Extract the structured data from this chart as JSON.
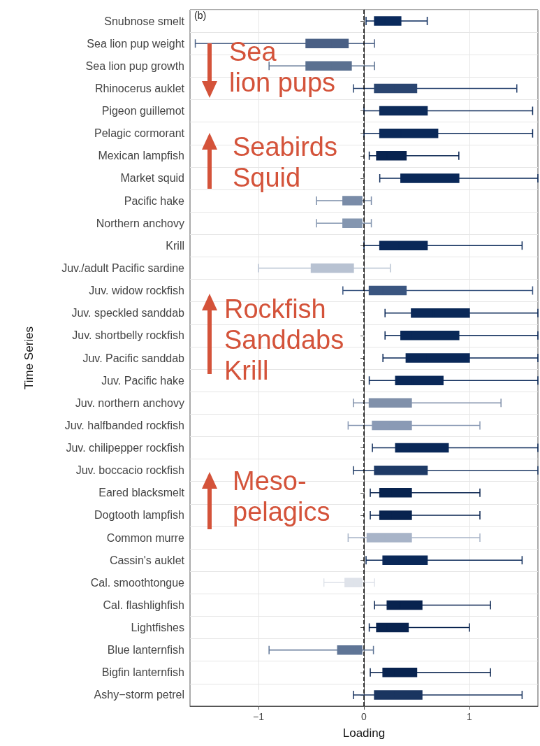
{
  "chart_data": {
    "type": "box",
    "orientation": "horizontal",
    "xlabel": "Loading",
    "ylabel": "Time Series",
    "categories": [
      "Snubnose smelt",
      "Sea lion pup weight",
      "Sea lion pup growth",
      "Rhinocerus auklet",
      "Pigeon guillemot",
      "Pelagic cormorant",
      "Mexican lampfish",
      "Market squid",
      "Pacific hake",
      "Northern anchovy",
      "Krill",
      "Juv./adult Pacific sardine",
      "Juv. widow rockfish",
      "Juv. speckled sanddab",
      "Juv. shortbelly rockfish",
      "Juv. Pacific sanddab",
      "Juv. Pacific hake",
      "Juv. northern anchovy",
      "Juv. halfbanded rockfish",
      "Juv. chilipepper rockfish",
      "Juv. boccacio rockfish",
      "Eared blacksmelt",
      "Dogtooth lampfish",
      "Common murre",
      "Cassin's auklet",
      "Cal. smoothtongue",
      "Cal. flashlighfish",
      "Lightfishes",
      "Blue lanternfish",
      "Bigfin lanternfish",
      "Ashy−storm petrel"
    ],
    "boxes": [
      {
        "low": 0.02,
        "q1": 0.1,
        "median": 0.2,
        "q3": 0.35,
        "high": 0.6
      },
      {
        "low": -1.6,
        "q1": -0.55,
        "median": -0.3,
        "q3": -0.15,
        "high": 0.1
      },
      {
        "low": -0.9,
        "q1": -0.55,
        "median": -0.3,
        "q3": -0.12,
        "high": 0.1
      },
      {
        "low": -0.1,
        "q1": 0.1,
        "median": 0.28,
        "q3": 0.5,
        "high": 1.45
      },
      {
        "low": 0,
        "q1": 0.15,
        "median": 0.33,
        "q3": 0.6,
        "high": 1.6
      },
      {
        "low": 0,
        "q1": 0.15,
        "median": 0.35,
        "q3": 0.7,
        "high": 1.6
      },
      {
        "low": 0.05,
        "q1": 0.12,
        "median": 0.22,
        "q3": 0.4,
        "high": 0.9
      },
      {
        "low": 0.15,
        "q1": 0.35,
        "median": 0.55,
        "q3": 0.9,
        "high": 1.65
      },
      {
        "low": -0.45,
        "q1": -0.2,
        "median": -0.08,
        "q3": -0.02,
        "high": 0.07
      },
      {
        "low": -0.45,
        "q1": -0.2,
        "median": -0.08,
        "q3": -0.02,
        "high": 0.07
      },
      {
        "low": 0,
        "q1": 0.15,
        "median": 0.33,
        "q3": 0.6,
        "high": 1.5
      },
      {
        "low": -1.0,
        "q1": -0.5,
        "median": -0.29,
        "q3": -0.1,
        "high": 0.25
      },
      {
        "low": -0.2,
        "q1": 0.05,
        "median": 0.18,
        "q3": 0.4,
        "high": 1.6
      },
      {
        "low": 0.2,
        "q1": 0.45,
        "median": 0.66,
        "q3": 1.0,
        "high": 1.65
      },
      {
        "low": 0.2,
        "q1": 0.35,
        "median": 0.45,
        "q3": 0.9,
        "high": 1.65
      },
      {
        "low": 0.18,
        "q1": 0.4,
        "median": 0.6,
        "q3": 1.0,
        "high": 1.65
      },
      {
        "low": 0.05,
        "q1": 0.3,
        "median": 0.46,
        "q3": 0.75,
        "high": 1.65
      },
      {
        "low": -0.1,
        "q1": 0.05,
        "median": 0.17,
        "q3": 0.45,
        "high": 1.3
      },
      {
        "low": -0.15,
        "q1": 0.08,
        "median": 0.24,
        "q3": 0.45,
        "high": 1.1
      },
      {
        "low": 0.08,
        "q1": 0.3,
        "median": 0.44,
        "q3": 0.8,
        "high": 1.65
      },
      {
        "low": -0.1,
        "q1": 0.1,
        "median": 0.29,
        "q3": 0.6,
        "high": 1.65
      },
      {
        "low": 0.06,
        "q1": 0.15,
        "median": 0.27,
        "q3": 0.45,
        "high": 1.1
      },
      {
        "low": 0.06,
        "q1": 0.15,
        "median": 0.27,
        "q3": 0.45,
        "high": 1.1
      },
      {
        "low": -0.15,
        "q1": 0.03,
        "median": 0.2,
        "q3": 0.45,
        "high": 1.1
      },
      {
        "low": 0.02,
        "q1": 0.18,
        "median": 0.33,
        "q3": 0.6,
        "high": 1.5
      },
      {
        "low": -0.38,
        "q1": -0.18,
        "median": -0.09,
        "q3": -0.02,
        "high": 0.1
      },
      {
        "low": 0.1,
        "q1": 0.22,
        "median": 0.34,
        "q3": 0.55,
        "high": 1.2
      },
      {
        "low": 0.05,
        "q1": 0.12,
        "median": 0.22,
        "q3": 0.42,
        "high": 1.0
      },
      {
        "low": -0.9,
        "q1": -0.25,
        "median": -0.09,
        "q3": -0.02,
        "high": 0.09
      },
      {
        "low": 0.06,
        "q1": 0.18,
        "median": 0.29,
        "q3": 0.5,
        "high": 1.2
      },
      {
        "low": -0.1,
        "q1": 0.1,
        "median": 0.29,
        "q3": 0.55,
        "high": 1.5
      }
    ],
    "colors": [
      "#0a2a5c",
      "#4a6085",
      "#5a7090",
      "#2a4570",
      "#0d2b5a",
      "#0a2858",
      "#08234f",
      "#0a2858",
      "#7a8ca8",
      "#8496b0",
      "#0a2858",
      "#b8c2d2",
      "#3a5580",
      "#0a2858",
      "#0a2858",
      "#0a2858",
      "#0a2858",
      "#8090aa",
      "#8a9ab5",
      "#0a2858",
      "#1e3a66",
      "#08234f",
      "#08234f",
      "#a8b4c8",
      "#0a2858",
      "#dfe3ea",
      "#08234f",
      "#08234f",
      "#5f7596",
      "#08234f",
      "#1a3560"
    ],
    "xlim": [
      -1.65,
      1.65
    ],
    "xticks": [
      -1,
      0,
      1
    ],
    "grid": true,
    "ref_lines": [
      {
        "axis": "x",
        "value": 0,
        "color": "#000000",
        "line_style": "dashed"
      }
    ],
    "annotations": [
      "(b)",
      "Sea\nlion pups",
      "Seabirds\nSquid",
      "Rockfish\nSanddabs\nKrill",
      "Meso-\npelagics"
    ]
  }
}
